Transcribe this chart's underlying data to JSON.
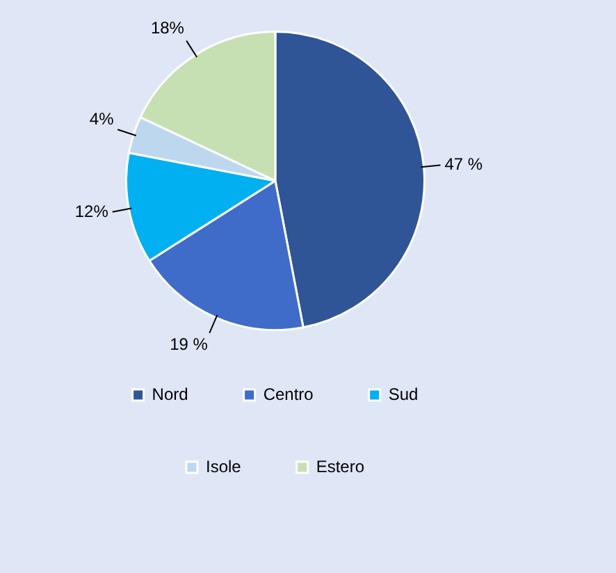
{
  "chart_data": {
    "type": "pie",
    "categories": [
      "Nord",
      "Centro",
      "Sud",
      "Isole",
      "Estero"
    ],
    "values": [
      47,
      19,
      12,
      4,
      18
    ],
    "value_labels": [
      "47 %",
      "19 %",
      "12%",
      "4%",
      "18%"
    ],
    "colors": [
      "#2f5597",
      "#3f6cc8",
      "#00b0f0",
      "#bdd7ee",
      "#c6e0b4"
    ],
    "legend": "bottom"
  }
}
